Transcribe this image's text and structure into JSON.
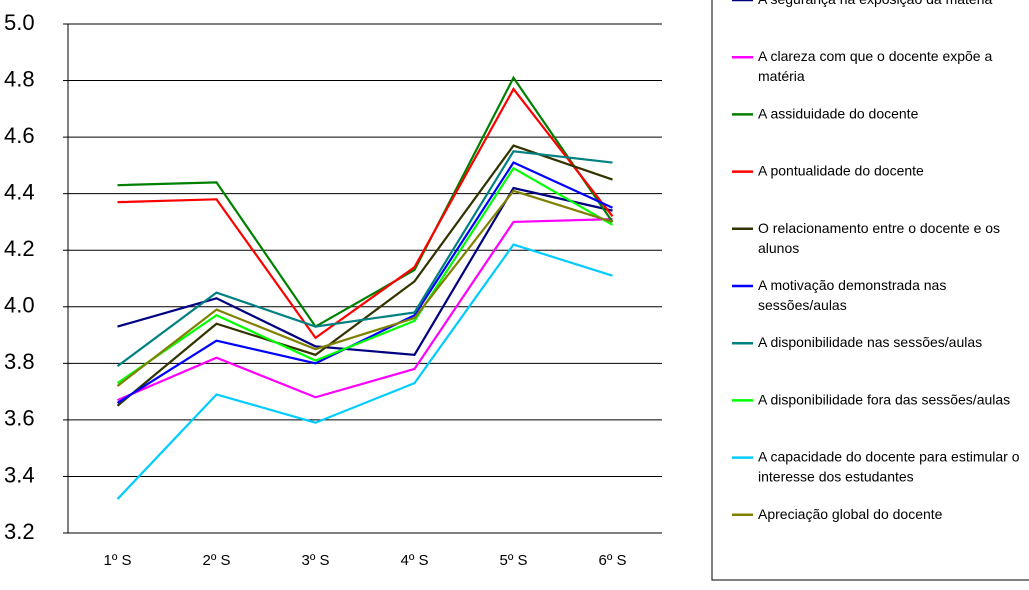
{
  "chart_data": {
    "type": "line",
    "categories": [
      "1º S",
      "2º S",
      "3º S",
      "4º S",
      "5º S",
      "6º S"
    ],
    "ylim": [
      3.2,
      5.0
    ],
    "yticks": [
      3.2,
      3.4,
      3.6,
      3.8,
      {
        "value": 4.0,
        "label": "4.0"
      },
      4.2,
      4.4,
      4.6,
      4.8,
      {
        "value": 5.0,
        "label": "5.0"
      }
    ],
    "grid": true,
    "legend": "right",
    "series": [
      {
        "name": "A segurança na exposição da matéria",
        "color": "#000080",
        "values": [
          3.93,
          4.03,
          3.86,
          3.83,
          4.42,
          4.34
        ]
      },
      {
        "name": "A clareza com que o docente expõe a matéria",
        "color": "#ff00ff",
        "values": [
          3.67,
          3.82,
          3.68,
          3.78,
          4.3,
          4.31
        ]
      },
      {
        "name": "A assiduidade do docente",
        "color": "#008000",
        "values": [
          4.43,
          4.44,
          3.93,
          4.13,
          4.81,
          4.3
        ]
      },
      {
        "name": "A pontualidade do docente",
        "color": "#ff0000",
        "values": [
          4.37,
          4.38,
          3.89,
          4.14,
          4.77,
          4.32
        ]
      },
      {
        "name": "O relacionamento entre o docente e os alunos",
        "color": "#333300",
        "values": [
          3.65,
          3.94,
          3.83,
          4.09,
          4.57,
          4.45
        ]
      },
      {
        "name": "A motivação demonstrada nas sessões/aulas",
        "color": "#0000ff",
        "values": [
          3.66,
          3.88,
          3.8,
          3.97,
          4.51,
          4.35
        ]
      },
      {
        "name": "A disponibilidade nas sessões/aulas",
        "color": "#008080",
        "values": [
          3.79,
          4.05,
          3.93,
          3.98,
          4.55,
          4.51
        ]
      },
      {
        "name": "A disponibilidade fora das sessões/aulas",
        "color": "#00ff00",
        "values": [
          3.73,
          3.97,
          3.81,
          3.95,
          4.49,
          4.29
        ]
      },
      {
        "name": "A capacidade do docente para estimular o interesse dos estudantes",
        "color": "#00ccff",
        "values": [
          3.32,
          3.69,
          3.59,
          3.73,
          4.22,
          4.11
        ]
      },
      {
        "name": "Apreciação global do docente",
        "color": "#808000",
        "values": [
          3.72,
          3.99,
          3.85,
          3.96,
          4.41,
          4.3
        ]
      }
    ]
  }
}
